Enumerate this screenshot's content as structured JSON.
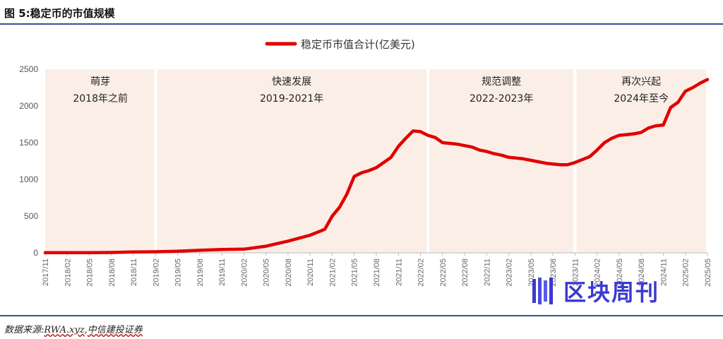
{
  "figure": {
    "title": "图 5:稳定币的市值规模",
    "source_prefix": "数据来源:",
    "source_rwa": "RWA.xyz",
    "source_sep": ",",
    "source_citic": "中信建投证券",
    "watermark": "区块周刊"
  },
  "colors": {
    "line": "#e00000",
    "band": "#fbeee6",
    "rule": "#2f5597",
    "watermark": "#3a3ad0"
  },
  "chart_data": {
    "type": "line",
    "title": "",
    "xlabel": "",
    "ylabel": "",
    "ylim": [
      0,
      2500
    ],
    "yticks": [
      0,
      500,
      1000,
      1500,
      2000,
      2500
    ],
    "x_tick_labels": [
      "2017/11",
      "2018/02",
      "2018/05",
      "2018/08",
      "2018/11",
      "2019/02",
      "2019/05",
      "2019/08",
      "2019/11",
      "2020/02",
      "2020/05",
      "2020/08",
      "2020/11",
      "2021/02",
      "2021/05",
      "2021/08",
      "2021/11",
      "2022/02",
      "2022/05",
      "2022/08",
      "2022/11",
      "2023/02",
      "2023/05",
      "2023/08",
      "2023/11",
      "2024/02",
      "2024/05",
      "2024/08",
      "2024/11",
      "2025/02",
      "2025/05"
    ],
    "legend": "top-center",
    "grid": false,
    "series": [
      {
        "name": "稳定币市值合计(亿美元)",
        "x": [
          "2017/11",
          "2018/02",
          "2018/05",
          "2018/08",
          "2018/11",
          "2019/02",
          "2019/05",
          "2019/08",
          "2019/11",
          "2020/02",
          "2020/05",
          "2020/08",
          "2020/11",
          "2021/01",
          "2021/02",
          "2021/03",
          "2021/04",
          "2021/05",
          "2021/06",
          "2021/07",
          "2021/08",
          "2021/09",
          "2021/10",
          "2021/11",
          "2021/12",
          "2022/01",
          "2022/02",
          "2022/03",
          "2022/04",
          "2022/05",
          "2022/06",
          "2022/07",
          "2022/08",
          "2022/09",
          "2022/10",
          "2022/11",
          "2022/12",
          "2023/01",
          "2023/02",
          "2023/03",
          "2023/04",
          "2023/05",
          "2023/06",
          "2023/07",
          "2023/08",
          "2023/09",
          "2023/10",
          "2023/11",
          "2023/12",
          "2024/01",
          "2024/02",
          "2024/03",
          "2024/04",
          "2024/05",
          "2024/06",
          "2024/07",
          "2024/08",
          "2024/09",
          "2024/10",
          "2024/11",
          "2024/12",
          "2025/01",
          "2025/02",
          "2025/03",
          "2025/04",
          "2025/05"
        ],
        "values": [
          2,
          3,
          3,
          5,
          12,
          14,
          22,
          35,
          45,
          50,
          90,
          160,
          240,
          320,
          500,
          620,
          800,
          1040,
          1090,
          1120,
          1160,
          1230,
          1300,
          1450,
          1560,
          1660,
          1650,
          1600,
          1570,
          1500,
          1490,
          1480,
          1460,
          1440,
          1400,
          1380,
          1350,
          1330,
          1300,
          1290,
          1280,
          1260,
          1240,
          1220,
          1210,
          1200,
          1200,
          1230,
          1270,
          1310,
          1400,
          1500,
          1560,
          1600,
          1610,
          1620,
          1640,
          1700,
          1730,
          1740,
          1980,
          2050,
          2200,
          2250,
          2310,
          2360
        ]
      }
    ],
    "phases": [
      {
        "label": "萌芽",
        "period": "2018年之前",
        "from": "2017/11",
        "to": "2019/02"
      },
      {
        "label": "快速发展",
        "period": "2019-2021年",
        "from": "2019/02",
        "to": "2022/03"
      },
      {
        "label": "规范调整",
        "period": "2022-2023年",
        "from": "2022/03",
        "to": "2023/11"
      },
      {
        "label": "再次兴起",
        "period": "2024年至今",
        "from": "2023/11",
        "to": "2025/05"
      }
    ]
  }
}
